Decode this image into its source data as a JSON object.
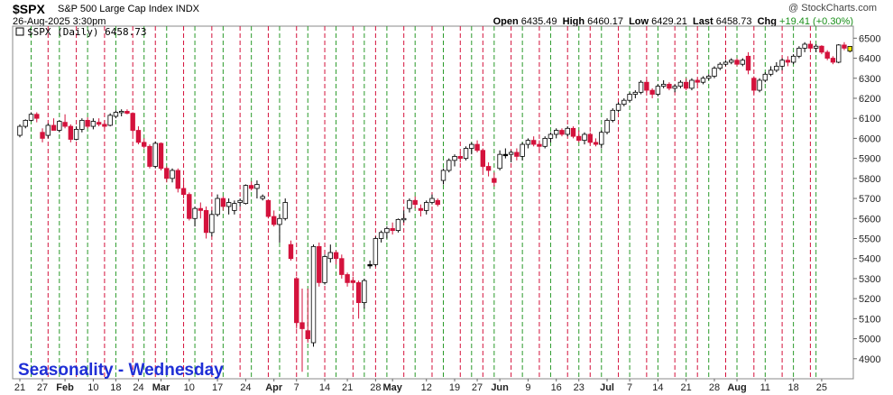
{
  "header": {
    "symbol": "$SPX",
    "name": "S&P 500 Large Cap Index",
    "exchange": "INDX",
    "credit": "@ StockCharts.com",
    "date": "26-Aug-2025 3:30pm",
    "open_label": "Open",
    "open": "6435.49",
    "high_label": "High",
    "high": "6460.17",
    "low_label": "Low",
    "low": "6429.21",
    "last_label": "Last",
    "last": "6458.73",
    "chg_label": "Chg",
    "chg": "+19.41 (+0.30%)"
  },
  "legend": {
    "text": "$SPX (Daily) 6458.73"
  },
  "overlay_text": "Seasonality - Wednesday",
  "colors": {
    "up": "#ffffff",
    "down": "#d4123c",
    "neutral": "#000000",
    "green_line": "#2a9a2a",
    "red_line": "#d4123c",
    "last_marker": "#f2e600"
  },
  "chart_data": {
    "type": "candlestick",
    "y_ticks": [
      4900,
      5000,
      5100,
      5200,
      5300,
      5400,
      5500,
      5600,
      5700,
      5800,
      5900,
      6000,
      6100,
      6200,
      6300,
      6400,
      6500
    ],
    "ylim": [
      4800,
      6560
    ],
    "x_labels": [
      {
        "i": 0,
        "text": "21",
        "bold": false
      },
      {
        "i": 4,
        "text": "27",
        "bold": false
      },
      {
        "i": 8,
        "text": "Feb",
        "bold": true
      },
      {
        "i": 13,
        "text": "10",
        "bold": false
      },
      {
        "i": 17,
        "text": "18",
        "bold": false
      },
      {
        "i": 21,
        "text": "24",
        "bold": false
      },
      {
        "i": 25,
        "text": "Mar",
        "bold": true
      },
      {
        "i": 30,
        "text": "10",
        "bold": false
      },
      {
        "i": 35,
        "text": "17",
        "bold": false
      },
      {
        "i": 40,
        "text": "24",
        "bold": false
      },
      {
        "i": 45,
        "text": "Apr",
        "bold": true
      },
      {
        "i": 49,
        "text": "7",
        "bold": false
      },
      {
        "i": 54,
        "text": "14",
        "bold": false
      },
      {
        "i": 58,
        "text": "21",
        "bold": false
      },
      {
        "i": 63,
        "text": "28",
        "bold": false
      },
      {
        "i": 66,
        "text": "May",
        "bold": true
      },
      {
        "i": 72,
        "text": "12",
        "bold": false
      },
      {
        "i": 77,
        "text": "19",
        "bold": false
      },
      {
        "i": 81,
        "text": "27",
        "bold": false
      },
      {
        "i": 85,
        "text": "Jun",
        "bold": true
      },
      {
        "i": 90,
        "text": "9",
        "bold": false
      },
      {
        "i": 95,
        "text": "16",
        "bold": false
      },
      {
        "i": 99,
        "text": "23",
        "bold": false
      },
      {
        "i": 104,
        "text": "Jul",
        "bold": true
      },
      {
        "i": 108,
        "text": "7",
        "bold": false
      },
      {
        "i": 113,
        "text": "14",
        "bold": false
      },
      {
        "i": 118,
        "text": "21",
        "bold": false
      },
      {
        "i": 123,
        "text": "28",
        "bold": false
      },
      {
        "i": 127,
        "text": "Aug",
        "bold": true
      },
      {
        "i": 132,
        "text": "11",
        "bold": false
      },
      {
        "i": 137,
        "text": "18",
        "bold": false
      },
      {
        "i": 142,
        "text": "25",
        "bold": false
      }
    ],
    "green_lines": [
      2,
      7,
      12,
      17,
      22,
      26,
      31,
      36,
      41,
      46,
      51,
      56,
      61,
      65,
      70,
      75,
      80,
      84,
      89,
      94,
      99,
      103,
      108,
      113,
      118,
      122,
      127,
      132,
      137,
      141
    ],
    "red_lines": [
      5,
      10,
      15,
      20,
      24,
      29,
      34,
      39,
      44,
      49,
      54,
      59,
      63,
      68,
      73,
      78,
      82,
      87,
      92,
      97,
      101,
      106,
      111,
      116,
      120,
      125,
      130,
      135,
      140
    ],
    "candles": [
      {
        "o": 6015,
        "h": 6070,
        "l": 6005,
        "c": 6060
      },
      {
        "o": 6060,
        "h": 6095,
        "l": 6050,
        "c": 6090
      },
      {
        "o": 6090,
        "h": 6130,
        "l": 6085,
        "c": 6120
      },
      {
        "o": 6120,
        "h": 6130,
        "l": 6080,
        "c": 6100
      },
      {
        "o": 6030,
        "h": 6050,
        "l": 5980,
        "c": 6000
      },
      {
        "o": 6015,
        "h": 6075,
        "l": 6000,
        "c": 6065
      },
      {
        "o": 6065,
        "h": 6100,
        "l": 6040,
        "c": 6040
      },
      {
        "o": 6040,
        "h": 6090,
        "l": 6030,
        "c": 6085
      },
      {
        "o": 6080,
        "h": 6120,
        "l": 6050,
        "c": 6060
      },
      {
        "o": 6060,
        "h": 6070,
        "l": 5980,
        "c": 5995
      },
      {
        "o": 5995,
        "h": 6060,
        "l": 5990,
        "c": 6045
      },
      {
        "o": 6045,
        "h": 6100,
        "l": 6030,
        "c": 6090
      },
      {
        "o": 6090,
        "h": 6105,
        "l": 6050,
        "c": 6060
      },
      {
        "o": 6060,
        "h": 6100,
        "l": 6045,
        "c": 6085
      },
      {
        "o": 6080,
        "h": 6100,
        "l": 6060,
        "c": 6070
      },
      {
        "o": 6070,
        "h": 6090,
        "l": 6050,
        "c": 6060
      },
      {
        "o": 6065,
        "h": 6125,
        "l": 6060,
        "c": 6115
      },
      {
        "o": 6110,
        "h": 6140,
        "l": 6100,
        "c": 6130
      },
      {
        "o": 6130,
        "h": 6145,
        "l": 6110,
        "c": 6135
      },
      {
        "o": 6135,
        "h": 6145,
        "l": 6120,
        "c": 6125
      },
      {
        "o": 6125,
        "h": 6130,
        "l": 6020,
        "c": 6040
      },
      {
        "o": 6040,
        "h": 6060,
        "l": 5970,
        "c": 5980
      },
      {
        "o": 5980,
        "h": 6000,
        "l": 5950,
        "c": 5960
      },
      {
        "o": 5960,
        "h": 5970,
        "l": 5850,
        "c": 5860
      },
      {
        "o": 5860,
        "h": 5985,
        "l": 5850,
        "c": 5975
      },
      {
        "o": 5975,
        "h": 5980,
        "l": 5840,
        "c": 5850
      },
      {
        "o": 5850,
        "h": 5860,
        "l": 5780,
        "c": 5800
      },
      {
        "o": 5800,
        "h": 5850,
        "l": 5780,
        "c": 5840
      },
      {
        "o": 5840,
        "h": 5850,
        "l": 5730,
        "c": 5750
      },
      {
        "o": 5750,
        "h": 5790,
        "l": 5700,
        "c": 5720
      },
      {
        "o": 5720,
        "h": 5730,
        "l": 5590,
        "c": 5600
      },
      {
        "o": 5600,
        "h": 5660,
        "l": 5560,
        "c": 5650
      },
      {
        "o": 5650,
        "h": 5680,
        "l": 5600,
        "c": 5640
      },
      {
        "o": 5640,
        "h": 5660,
        "l": 5500,
        "c": 5530
      },
      {
        "o": 5530,
        "h": 5640,
        "l": 5510,
        "c": 5620
      },
      {
        "o": 5620,
        "h": 5720,
        "l": 5610,
        "c": 5700
      },
      {
        "o": 5700,
        "h": 5710,
        "l": 5640,
        "c": 5660
      },
      {
        "o": 5660,
        "h": 5700,
        "l": 5620,
        "c": 5680
      },
      {
        "o": 5640,
        "h": 5690,
        "l": 5620,
        "c": 5675
      },
      {
        "o": 5680,
        "h": 5700,
        "l": 5660,
        "c": 5690
      },
      {
        "o": 5675,
        "h": 5770,
        "l": 5670,
        "c": 5765
      },
      {
        "o": 5765,
        "h": 5785,
        "l": 5740,
        "c": 5750
      },
      {
        "o": 5750,
        "h": 5790,
        "l": 5700,
        "c": 5770
      },
      {
        "o": 5700,
        "h": 5720,
        "l": 5690,
        "c": 5710
      },
      {
        "o": 5690,
        "h": 5695,
        "l": 5600,
        "c": 5610
      },
      {
        "o": 5610,
        "h": 5640,
        "l": 5560,
        "c": 5570
      },
      {
        "o": 5570,
        "h": 5620,
        "l": 5480,
        "c": 5600
      },
      {
        "o": 5600,
        "h": 5700,
        "l": 5590,
        "c": 5680
      },
      {
        "o": 5470,
        "h": 5490,
        "l": 5390,
        "c": 5400
      },
      {
        "o": 5300,
        "h": 5310,
        "l": 5050,
        "c": 5080
      },
      {
        "o": 5080,
        "h": 5250,
        "l": 4835,
        "c": 5050
      },
      {
        "o": 5040,
        "h": 5250,
        "l": 4980,
        "c": 5000
      },
      {
        "o": 4980,
        "h": 5470,
        "l": 4960,
        "c": 5460
      },
      {
        "o": 5460,
        "h": 5480,
        "l": 5260,
        "c": 5280
      },
      {
        "o": 5280,
        "h": 5420,
        "l": 5270,
        "c": 5410
      },
      {
        "o": 5400,
        "h": 5470,
        "l": 5380,
        "c": 5430
      },
      {
        "o": 5430,
        "h": 5440,
        "l": 5370,
        "c": 5400
      },
      {
        "o": 5400,
        "h": 5420,
        "l": 5300,
        "c": 5320
      },
      {
        "o": 5320,
        "h": 5330,
        "l": 5260,
        "c": 5280
      },
      {
        "o": 5290,
        "h": 5310,
        "l": 5240,
        "c": 5280
      },
      {
        "o": 5280,
        "h": 5290,
        "l": 5100,
        "c": 5180
      },
      {
        "o": 5180,
        "h": 5300,
        "l": 5150,
        "c": 5290
      },
      {
        "o": 5370,
        "h": 5390,
        "l": 5350,
        "c": 5370
      },
      {
        "o": 5370,
        "h": 5510,
        "l": 5360,
        "c": 5500
      },
      {
        "o": 5500,
        "h": 5540,
        "l": 5480,
        "c": 5530
      },
      {
        "o": 5530,
        "h": 5560,
        "l": 5500,
        "c": 5550
      },
      {
        "o": 5550,
        "h": 5580,
        "l": 5520,
        "c": 5540
      },
      {
        "o": 5540,
        "h": 5600,
        "l": 5530,
        "c": 5595
      },
      {
        "o": 5595,
        "h": 5640,
        "l": 5580,
        "c": 5600
      },
      {
        "o": 5650,
        "h": 5700,
        "l": 5630,
        "c": 5690
      },
      {
        "o": 5690,
        "h": 5710,
        "l": 5650,
        "c": 5670
      },
      {
        "o": 5650,
        "h": 5670,
        "l": 5610,
        "c": 5640
      },
      {
        "o": 5640,
        "h": 5690,
        "l": 5620,
        "c": 5680
      },
      {
        "o": 5680,
        "h": 5720,
        "l": 5670,
        "c": 5700
      },
      {
        "o": 5690,
        "h": 5700,
        "l": 5660,
        "c": 5670
      },
      {
        "o": 5790,
        "h": 5850,
        "l": 5770,
        "c": 5840
      },
      {
        "o": 5840,
        "h": 5900,
        "l": 5830,
        "c": 5890
      },
      {
        "o": 5890,
        "h": 5920,
        "l": 5860,
        "c": 5910
      },
      {
        "o": 5910,
        "h": 5930,
        "l": 5880,
        "c": 5900
      },
      {
        "o": 5900,
        "h": 5960,
        "l": 5890,
        "c": 5950
      },
      {
        "o": 5950,
        "h": 5980,
        "l": 5920,
        "c": 5970
      },
      {
        "o": 5970,
        "h": 5990,
        "l": 5930,
        "c": 5940
      },
      {
        "o": 5940,
        "h": 5950,
        "l": 5840,
        "c": 5860
      },
      {
        "o": 5860,
        "h": 5880,
        "l": 5810,
        "c": 5840
      },
      {
        "o": 5800,
        "h": 5830,
        "l": 5760,
        "c": 5780
      },
      {
        "o": 5850,
        "h": 5940,
        "l": 5840,
        "c": 5920
      },
      {
        "o": 5920,
        "h": 5950,
        "l": 5900,
        "c": 5920
      },
      {
        "o": 5920,
        "h": 5940,
        "l": 5880,
        "c": 5930
      },
      {
        "o": 5930,
        "h": 5950,
        "l": 5890,
        "c": 5910
      },
      {
        "o": 5910,
        "h": 5980,
        "l": 5890,
        "c": 5970
      },
      {
        "o": 5970,
        "h": 6000,
        "l": 5950,
        "c": 5990
      },
      {
        "o": 5990,
        "h": 6010,
        "l": 5960,
        "c": 5970
      },
      {
        "o": 5970,
        "h": 5990,
        "l": 5930,
        "c": 5960
      },
      {
        "o": 5960,
        "h": 6010,
        "l": 5950,
        "c": 6000
      },
      {
        "o": 6000,
        "h": 6030,
        "l": 5980,
        "c": 6020
      },
      {
        "o": 6020,
        "h": 6050,
        "l": 6000,
        "c": 6040
      },
      {
        "o": 6040,
        "h": 6050,
        "l": 6010,
        "c": 6020
      },
      {
        "o": 6020,
        "h": 6060,
        "l": 6010,
        "c": 6050
      },
      {
        "o": 6050,
        "h": 6060,
        "l": 6000,
        "c": 6010
      },
      {
        "o": 6010,
        "h": 6040,
        "l": 5980,
        "c": 5990
      },
      {
        "o": 5990,
        "h": 6030,
        "l": 5970,
        "c": 6020
      },
      {
        "o": 6020,
        "h": 6030,
        "l": 5970,
        "c": 5980
      },
      {
        "o": 5980,
        "h": 6000,
        "l": 5960,
        "c": 5970
      },
      {
        "o": 5970,
        "h": 6040,
        "l": 5950,
        "c": 6030
      },
      {
        "o": 6030,
        "h": 6100,
        "l": 6020,
        "c": 6090
      },
      {
        "o": 6090,
        "h": 6150,
        "l": 6080,
        "c": 6140
      },
      {
        "o": 6140,
        "h": 6180,
        "l": 6130,
        "c": 6170
      },
      {
        "o": 6170,
        "h": 6200,
        "l": 6160,
        "c": 6190
      },
      {
        "o": 6190,
        "h": 6230,
        "l": 6180,
        "c": 6220
      },
      {
        "o": 6220,
        "h": 6240,
        "l": 6200,
        "c": 6230
      },
      {
        "o": 6230,
        "h": 6290,
        "l": 6220,
        "c": 6280
      },
      {
        "o": 6280,
        "h": 6290,
        "l": 6230,
        "c": 6240
      },
      {
        "o": 6240,
        "h": 6250,
        "l": 6200,
        "c": 6220
      },
      {
        "o": 6220,
        "h": 6270,
        "l": 6210,
        "c": 6260
      },
      {
        "o": 6260,
        "h": 6290,
        "l": 6250,
        "c": 6270
      },
      {
        "o": 6270,
        "h": 6280,
        "l": 6240,
        "c": 6250
      },
      {
        "o": 6250,
        "h": 6270,
        "l": 6230,
        "c": 6260
      },
      {
        "o": 6260,
        "h": 6290,
        "l": 6250,
        "c": 6280
      },
      {
        "o": 6280,
        "h": 6300,
        "l": 6240,
        "c": 6250
      },
      {
        "o": 6250,
        "h": 6300,
        "l": 6240,
        "c": 6290
      },
      {
        "o": 6290,
        "h": 6300,
        "l": 6270,
        "c": 6280
      },
      {
        "o": 6280,
        "h": 6310,
        "l": 6270,
        "c": 6300
      },
      {
        "o": 6300,
        "h": 6320,
        "l": 6290,
        "c": 6310
      },
      {
        "o": 6310,
        "h": 6360,
        "l": 6300,
        "c": 6350
      },
      {
        "o": 6350,
        "h": 6380,
        "l": 6340,
        "c": 6370
      },
      {
        "o": 6370,
        "h": 6390,
        "l": 6360,
        "c": 6380
      },
      {
        "o": 6380,
        "h": 6400,
        "l": 6370,
        "c": 6390
      },
      {
        "o": 6390,
        "h": 6400,
        "l": 6360,
        "c": 6370
      },
      {
        "o": 6370,
        "h": 6400,
        "l": 6360,
        "c": 6390
      },
      {
        "o": 6410,
        "h": 6430,
        "l": 6320,
        "c": 6340
      },
      {
        "o": 6300,
        "h": 6310,
        "l": 6220,
        "c": 6240
      },
      {
        "o": 6240,
        "h": 6300,
        "l": 6230,
        "c": 6290
      },
      {
        "o": 6290,
        "h": 6330,
        "l": 6280,
        "c": 6320
      },
      {
        "o": 6320,
        "h": 6360,
        "l": 6310,
        "c": 6340
      },
      {
        "o": 6340,
        "h": 6380,
        "l": 6330,
        "c": 6360
      },
      {
        "o": 6360,
        "h": 6400,
        "l": 6340,
        "c": 6390
      },
      {
        "o": 6390,
        "h": 6410,
        "l": 6360,
        "c": 6380
      },
      {
        "o": 6380,
        "h": 6420,
        "l": 6370,
        "c": 6410
      },
      {
        "o": 6410,
        "h": 6460,
        "l": 6400,
        "c": 6450
      },
      {
        "o": 6450,
        "h": 6480,
        "l": 6430,
        "c": 6470
      },
      {
        "o": 6470,
        "h": 6480,
        "l": 6440,
        "c": 6450
      },
      {
        "o": 6450,
        "h": 6470,
        "l": 6430,
        "c": 6460
      },
      {
        "o": 6460,
        "h": 6465,
        "l": 6420,
        "c": 6430
      },
      {
        "o": 6430,
        "h": 6440,
        "l": 6390,
        "c": 6400
      },
      {
        "o": 6400,
        "h": 6410,
        "l": 6370,
        "c": 6380
      },
      {
        "o": 6380,
        "h": 6470,
        "l": 6375,
        "c": 6466
      },
      {
        "o": 6466,
        "h": 6480,
        "l": 6440,
        "c": 6450
      },
      {
        "o": 6435,
        "h": 6460,
        "l": 6429,
        "c": 6459
      }
    ]
  }
}
